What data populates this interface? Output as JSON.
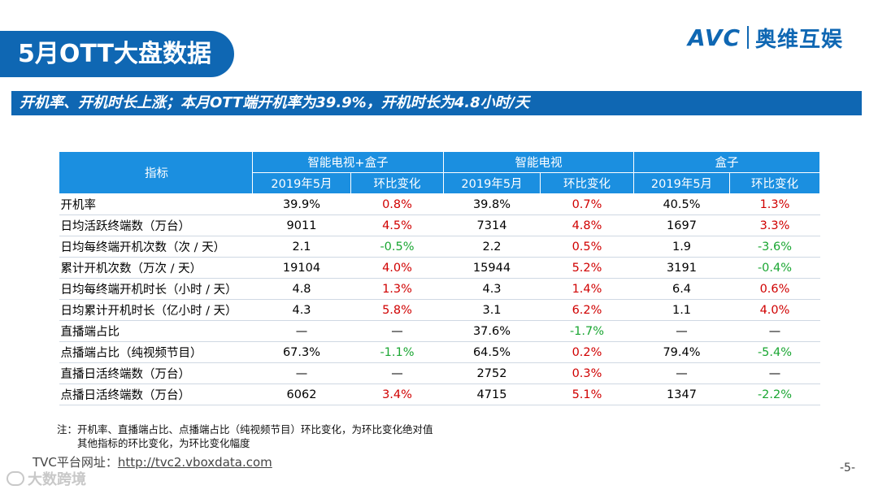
{
  "slide": {
    "title": "5月OTT大盘数据",
    "subtitle": "开机率、开机时长上涨；本月OTT端开机率为39.9%，开机时长为4.8小时/天",
    "logo_latin": "AVC",
    "logo_cn": "奥维互娱",
    "page_number": "-5-",
    "bottom_watermark": "大数跨境"
  },
  "table": {
    "header_indicator": "指标",
    "groups": [
      "智能电视+盒子",
      "智能电视",
      "盒子"
    ],
    "sub_headers": [
      "2019年5月",
      "环比变化",
      "2019年5月",
      "环比变化",
      "2019年5月",
      "环比变化"
    ],
    "rows": [
      {
        "name": "开机率",
        "cells": [
          "39.9%",
          "0.8%",
          "39.8%",
          "0.7%",
          "40.5%",
          "1.3%"
        ],
        "colors": [
          "",
          "red",
          "",
          "red",
          "",
          "red"
        ]
      },
      {
        "name": "日均活跃终端数（万台）",
        "cells": [
          "9011",
          "4.5%",
          "7314",
          "4.8%",
          "1697",
          "3.3%"
        ],
        "colors": [
          "",
          "red",
          "",
          "red",
          "",
          "red"
        ]
      },
      {
        "name": "日均每终端开机次数（次 / 天）",
        "cells": [
          "2.1",
          "-0.5%",
          "2.2",
          "0.5%",
          "1.9",
          "-3.6%"
        ],
        "colors": [
          "",
          "green",
          "",
          "red",
          "",
          "green"
        ]
      },
      {
        "name": "累计开机次数（万次 / 天）",
        "cells": [
          "19104",
          "4.0%",
          "15944",
          "5.2%",
          "3191",
          "-0.4%"
        ],
        "colors": [
          "",
          "red",
          "",
          "red",
          "",
          "green"
        ]
      },
      {
        "name": "日均每终端开机时长（小时 / 天）",
        "cells": [
          "4.8",
          "1.3%",
          "4.3",
          "1.4%",
          "6.4",
          "0.6%"
        ],
        "colors": [
          "",
          "red",
          "",
          "red",
          "",
          "red"
        ]
      },
      {
        "name": "日均累计开机时长（亿小时 / 天）",
        "cells": [
          "4.3",
          "5.8%",
          "3.1",
          "6.2%",
          "1.1",
          "4.0%"
        ],
        "colors": [
          "",
          "red",
          "",
          "red",
          "",
          "red"
        ]
      },
      {
        "name": "直播端占比",
        "cells": [
          "—",
          "—",
          "37.6%",
          "-1.7%",
          "—",
          "—"
        ],
        "colors": [
          "",
          "",
          "",
          "green",
          "",
          ""
        ]
      },
      {
        "name": "点播端占比（纯视频节目）",
        "cells": [
          "67.3%",
          "-1.1%",
          "64.5%",
          "0.2%",
          "79.4%",
          "-5.4%"
        ],
        "colors": [
          "",
          "green",
          "",
          "red",
          "",
          "green"
        ]
      },
      {
        "name": "直播日活终端数（万台）",
        "cells": [
          "—",
          "—",
          "2752",
          "0.3%",
          "—",
          "—"
        ],
        "colors": [
          "",
          "",
          "",
          "red",
          "",
          ""
        ]
      },
      {
        "name": "点播日活终端数（万台）",
        "cells": [
          "6062",
          "3.4%",
          "4715",
          "5.1%",
          "1347",
          "-2.2%"
        ],
        "colors": [
          "",
          "red",
          "",
          "red",
          "",
          "green"
        ]
      }
    ]
  },
  "notes": {
    "line1": "注：开机率、直播端占比、点播端占比（纯视频节目）环比变化，为环比变化绝对值",
    "line2": "其他指标的环比变化，为环比变化幅度"
  },
  "source": {
    "label": "TVC平台网址：",
    "url": "http://tvc2.vboxdata.com"
  },
  "colors": {
    "brand_blue": "#0f67b3",
    "header_blue": "#1b8fe0",
    "increase": "#d00000",
    "decrease": "#1aa632"
  }
}
